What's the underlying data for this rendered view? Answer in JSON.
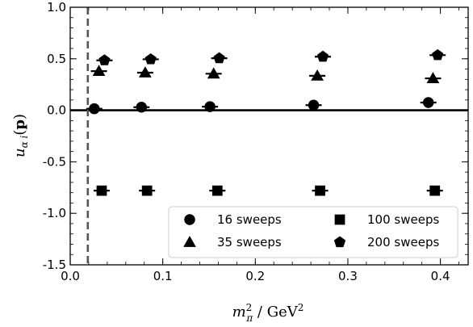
{
  "chart_data": {
    "type": "scatter",
    "xlabel": "m_π² / GeV²",
    "ylabel": "u_{α i}(p)",
    "xlim": [
      0.0,
      0.43
    ],
    "ylim": [
      -1.5,
      1.0
    ],
    "xticks": [
      "0.0",
      "0.1",
      "0.2",
      "0.3",
      "0.4"
    ],
    "yticks": [
      "1.0",
      "0.5",
      "0.0",
      "-0.5",
      "-1.0",
      "-1.5"
    ],
    "grid": false,
    "legend_position": "lower-right",
    "reference_lines": {
      "horizontal_solid_y": 0.0,
      "vertical_dashed_x": 0.019
    },
    "series": [
      {
        "name": "16 sweeps",
        "marker": "circle",
        "x": [
          0.026,
          0.077,
          0.151,
          0.263,
          0.387
        ],
        "y": [
          0.015,
          0.03,
          0.035,
          0.05,
          0.075
        ]
      },
      {
        "name": "35 sweeps",
        "marker": "triangle",
        "x": [
          0.031,
          0.081,
          0.155,
          0.267,
          0.392
        ],
        "y": [
          0.38,
          0.365,
          0.355,
          0.335,
          0.31
        ]
      },
      {
        "name": "100 sweeps",
        "marker": "square",
        "x": [
          0.034,
          0.083,
          0.159,
          0.27,
          0.394
        ],
        "y": [
          -0.78,
          -0.78,
          -0.78,
          -0.78,
          -0.78
        ]
      },
      {
        "name": "200 sweeps",
        "marker": "pentagon",
        "x": [
          0.037,
          0.087,
          0.161,
          0.273,
          0.397
        ],
        "y": [
          0.485,
          0.495,
          0.505,
          0.52,
          0.535
        ]
      }
    ]
  }
}
